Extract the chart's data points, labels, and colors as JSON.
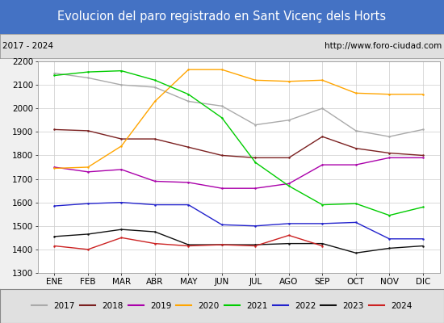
{
  "title": "Evolucion del paro registrado en Sant Vicenç dels Horts",
  "subtitle_left": "2017 - 2024",
  "subtitle_right": "http://www.foro-ciudad.com",
  "months": [
    "ENE",
    "FEB",
    "MAR",
    "ABR",
    "MAY",
    "JUN",
    "JUL",
    "AGO",
    "SEP",
    "OCT",
    "NOV",
    "DIC"
  ],
  "ylim": [
    1300,
    2200
  ],
  "yticks": [
    1300,
    1400,
    1500,
    1600,
    1700,
    1800,
    1900,
    2000,
    2100,
    2200
  ],
  "series": {
    "2017": {
      "color": "#aaaaaa",
      "values": [
        2150,
        2130,
        2100,
        2090,
        2030,
        2010,
        1930,
        1950,
        2000,
        1905,
        1880,
        1910
      ]
    },
    "2018": {
      "color": "#7B2020",
      "values": [
        1910,
        1905,
        1870,
        1870,
        1835,
        1800,
        1790,
        1790,
        1880,
        1830,
        1810,
        1800
      ]
    },
    "2019": {
      "color": "#aa00aa",
      "values": [
        1750,
        1730,
        1740,
        1690,
        1685,
        1660,
        1660,
        1680,
        1760,
        1760,
        1790,
        1790
      ]
    },
    "2020": {
      "color": "#FFA500",
      "values": [
        1745,
        1750,
        1840,
        2030,
        2165,
        2165,
        2120,
        2115,
        2120,
        2065,
        2060,
        2060
      ]
    },
    "2021": {
      "color": "#00cc00",
      "values": [
        2140,
        2155,
        2160,
        2120,
        2060,
        1960,
        1770,
        1670,
        1590,
        1595,
        1545,
        1580
      ]
    },
    "2022": {
      "color": "#2222cc",
      "values": [
        1585,
        1595,
        1600,
        1590,
        1590,
        1505,
        1500,
        1510,
        1510,
        1515,
        1445,
        1445
      ]
    },
    "2023": {
      "color": "#111111",
      "values": [
        1455,
        1465,
        1485,
        1475,
        1420,
        1420,
        1420,
        1425,
        1425,
        1385,
        1405,
        1415
      ]
    },
    "2024": {
      "color": "#cc2222",
      "values": [
        1415,
        1400,
        1450,
        1425,
        1415,
        1420,
        1415,
        1460,
        1415,
        null,
        null,
        null
      ]
    }
  },
  "background_color": "#f0f0f0",
  "plot_bg_color": "#ffffff",
  "title_bg_color": "#4472c4",
  "title_text_color": "#ffffff",
  "subtitle_bg_color": "#e0e0e0",
  "grid_color": "#cccccc",
  "title_fontsize": 10.5,
  "axis_fontsize": 7.5,
  "legend_fontsize": 7.5
}
